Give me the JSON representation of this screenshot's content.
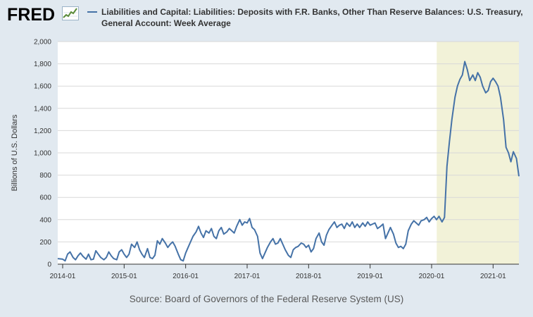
{
  "header": {
    "logo_text": "FRED",
    "logo_icon": "trend-chart-icon",
    "legend_label": "Liabilities and Capital: Liabilities: Deposits with F.R. Banks, Other Than Reserve Balances: U.S. Treasury, General Account: Week Average"
  },
  "source": "Source: Board of Governors of the Federal Reserve System (US)",
  "colors": {
    "series": "#4572a7",
    "background": "#e1e9f0",
    "plot_background": "#ffffff",
    "recession_shade": "#f2f2d8",
    "grid": "#d8d8d8"
  },
  "chart_data": {
    "type": "line",
    "title": "",
    "xlabel": "",
    "ylabel": "Billions of U.S. Dollars",
    "ylim": [
      0,
      2000
    ],
    "yticks": [
      0,
      200,
      400,
      600,
      800,
      1000,
      1200,
      1400,
      1600,
      1800,
      2000
    ],
    "ytick_labels": [
      "0",
      "200",
      "400",
      "600",
      "800",
      "1,000",
      "1,200",
      "1,400",
      "1,600",
      "1,800",
      "2,000"
    ],
    "xlim": [
      "2013-12",
      "2021-05"
    ],
    "xtick_labels": [
      "2014-01",
      "2015-01",
      "2016-01",
      "2017-01",
      "2018-01",
      "2019-01",
      "2020-01",
      "2021-01"
    ],
    "xtick_values": [
      2014.0,
      2015.0,
      2016.0,
      2017.0,
      2018.0,
      2019.0,
      2020.0,
      2021.0
    ],
    "grid": "horizontal",
    "recession_shading": {
      "start": "2020-02",
      "end": "2021-05"
    },
    "series": [
      {
        "name": "Liabilities and Capital: Liabilities: Deposits with F.R. Banks, Other Than Reserve Balances: U.S. Treasury, General Account: Week Average",
        "points": [
          [
            2013.92,
            50
          ],
          [
            2014.0,
            45
          ],
          [
            2014.04,
            30
          ],
          [
            2014.08,
            90
          ],
          [
            2014.12,
            110
          ],
          [
            2014.17,
            60
          ],
          [
            2014.21,
            40
          ],
          [
            2014.25,
            75
          ],
          [
            2014.29,
            100
          ],
          [
            2014.33,
            70
          ],
          [
            2014.38,
            45
          ],
          [
            2014.42,
            90
          ],
          [
            2014.46,
            40
          ],
          [
            2014.5,
            45
          ],
          [
            2014.54,
            120
          ],
          [
            2014.58,
            90
          ],
          [
            2014.62,
            60
          ],
          [
            2014.67,
            40
          ],
          [
            2014.71,
            60
          ],
          [
            2014.75,
            110
          ],
          [
            2014.79,
            75
          ],
          [
            2014.83,
            50
          ],
          [
            2014.88,
            40
          ],
          [
            2014.92,
            110
          ],
          [
            2014.96,
            130
          ],
          [
            2015.0,
            90
          ],
          [
            2015.04,
            60
          ],
          [
            2015.08,
            90
          ],
          [
            2015.12,
            180
          ],
          [
            2015.17,
            150
          ],
          [
            2015.21,
            200
          ],
          [
            2015.25,
            130
          ],
          [
            2015.29,
            90
          ],
          [
            2015.33,
            60
          ],
          [
            2015.38,
            140
          ],
          [
            2015.42,
            60
          ],
          [
            2015.46,
            50
          ],
          [
            2015.5,
            80
          ],
          [
            2015.54,
            210
          ],
          [
            2015.58,
            180
          ],
          [
            2015.62,
            230
          ],
          [
            2015.67,
            190
          ],
          [
            2015.71,
            150
          ],
          [
            2015.75,
            180
          ],
          [
            2015.79,
            200
          ],
          [
            2015.83,
            160
          ],
          [
            2015.88,
            90
          ],
          [
            2015.92,
            40
          ],
          [
            2015.96,
            30
          ],
          [
            2016.0,
            100
          ],
          [
            2016.04,
            150
          ],
          [
            2016.08,
            200
          ],
          [
            2016.12,
            250
          ],
          [
            2016.17,
            290
          ],
          [
            2016.21,
            340
          ],
          [
            2016.25,
            280
          ],
          [
            2016.29,
            240
          ],
          [
            2016.33,
            300
          ],
          [
            2016.38,
            280
          ],
          [
            2016.42,
            320
          ],
          [
            2016.46,
            250
          ],
          [
            2016.5,
            230
          ],
          [
            2016.54,
            300
          ],
          [
            2016.58,
            330
          ],
          [
            2016.62,
            270
          ],
          [
            2016.67,
            290
          ],
          [
            2016.71,
            320
          ],
          [
            2016.75,
            300
          ],
          [
            2016.79,
            280
          ],
          [
            2016.83,
            340
          ],
          [
            2016.88,
            400
          ],
          [
            2016.92,
            350
          ],
          [
            2016.96,
            380
          ],
          [
            2017.0,
            370
          ],
          [
            2017.04,
            410
          ],
          [
            2017.08,
            330
          ],
          [
            2017.12,
            310
          ],
          [
            2017.17,
            250
          ],
          [
            2017.21,
            100
          ],
          [
            2017.25,
            50
          ],
          [
            2017.29,
            100
          ],
          [
            2017.33,
            150
          ],
          [
            2017.38,
            200
          ],
          [
            2017.42,
            230
          ],
          [
            2017.46,
            180
          ],
          [
            2017.5,
            190
          ],
          [
            2017.54,
            230
          ],
          [
            2017.58,
            180
          ],
          [
            2017.62,
            130
          ],
          [
            2017.67,
            80
          ],
          [
            2017.71,
            60
          ],
          [
            2017.75,
            130
          ],
          [
            2017.79,
            150
          ],
          [
            2017.83,
            160
          ],
          [
            2017.88,
            190
          ],
          [
            2017.92,
            180
          ],
          [
            2017.96,
            150
          ],
          [
            2018.0,
            170
          ],
          [
            2018.04,
            110
          ],
          [
            2018.08,
            140
          ],
          [
            2018.12,
            230
          ],
          [
            2018.17,
            280
          ],
          [
            2018.21,
            200
          ],
          [
            2018.25,
            170
          ],
          [
            2018.29,
            260
          ],
          [
            2018.33,
            310
          ],
          [
            2018.38,
            350
          ],
          [
            2018.42,
            380
          ],
          [
            2018.46,
            330
          ],
          [
            2018.5,
            350
          ],
          [
            2018.54,
            360
          ],
          [
            2018.58,
            320
          ],
          [
            2018.62,
            370
          ],
          [
            2018.67,
            340
          ],
          [
            2018.71,
            380
          ],
          [
            2018.75,
            330
          ],
          [
            2018.79,
            360
          ],
          [
            2018.83,
            330
          ],
          [
            2018.88,
            370
          ],
          [
            2018.92,
            340
          ],
          [
            2018.96,
            380
          ],
          [
            2019.0,
            350
          ],
          [
            2019.04,
            360
          ],
          [
            2019.08,
            370
          ],
          [
            2019.12,
            320
          ],
          [
            2019.17,
            340
          ],
          [
            2019.21,
            360
          ],
          [
            2019.25,
            230
          ],
          [
            2019.29,
            280
          ],
          [
            2019.33,
            330
          ],
          [
            2019.38,
            270
          ],
          [
            2019.42,
            190
          ],
          [
            2019.46,
            150
          ],
          [
            2019.5,
            160
          ],
          [
            2019.54,
            140
          ],
          [
            2019.58,
            180
          ],
          [
            2019.62,
            300
          ],
          [
            2019.67,
            360
          ],
          [
            2019.71,
            390
          ],
          [
            2019.75,
            370
          ],
          [
            2019.79,
            350
          ],
          [
            2019.83,
            390
          ],
          [
            2019.88,
            400
          ],
          [
            2019.92,
            420
          ],
          [
            2019.96,
            380
          ],
          [
            2020.0,
            410
          ],
          [
            2020.04,
            430
          ],
          [
            2020.08,
            400
          ],
          [
            2020.12,
            430
          ],
          [
            2020.17,
            380
          ],
          [
            2020.21,
            420
          ],
          [
            2020.25,
            880
          ],
          [
            2020.29,
            1100
          ],
          [
            2020.33,
            1300
          ],
          [
            2020.38,
            1500
          ],
          [
            2020.42,
            1600
          ],
          [
            2020.46,
            1660
          ],
          [
            2020.5,
            1700
          ],
          [
            2020.54,
            1820
          ],
          [
            2020.58,
            1750
          ],
          [
            2020.62,
            1650
          ],
          [
            2020.67,
            1700
          ],
          [
            2020.71,
            1650
          ],
          [
            2020.75,
            1720
          ],
          [
            2020.79,
            1680
          ],
          [
            2020.83,
            1600
          ],
          [
            2020.88,
            1540
          ],
          [
            2020.92,
            1560
          ],
          [
            2020.96,
            1640
          ],
          [
            2021.0,
            1670
          ],
          [
            2021.04,
            1640
          ],
          [
            2021.08,
            1600
          ],
          [
            2021.12,
            1500
          ],
          [
            2021.17,
            1300
          ],
          [
            2021.21,
            1050
          ],
          [
            2021.25,
            1000
          ],
          [
            2021.29,
            920
          ],
          [
            2021.33,
            1010
          ],
          [
            2021.38,
            950
          ],
          [
            2021.42,
            790
          ]
        ]
      }
    ]
  }
}
